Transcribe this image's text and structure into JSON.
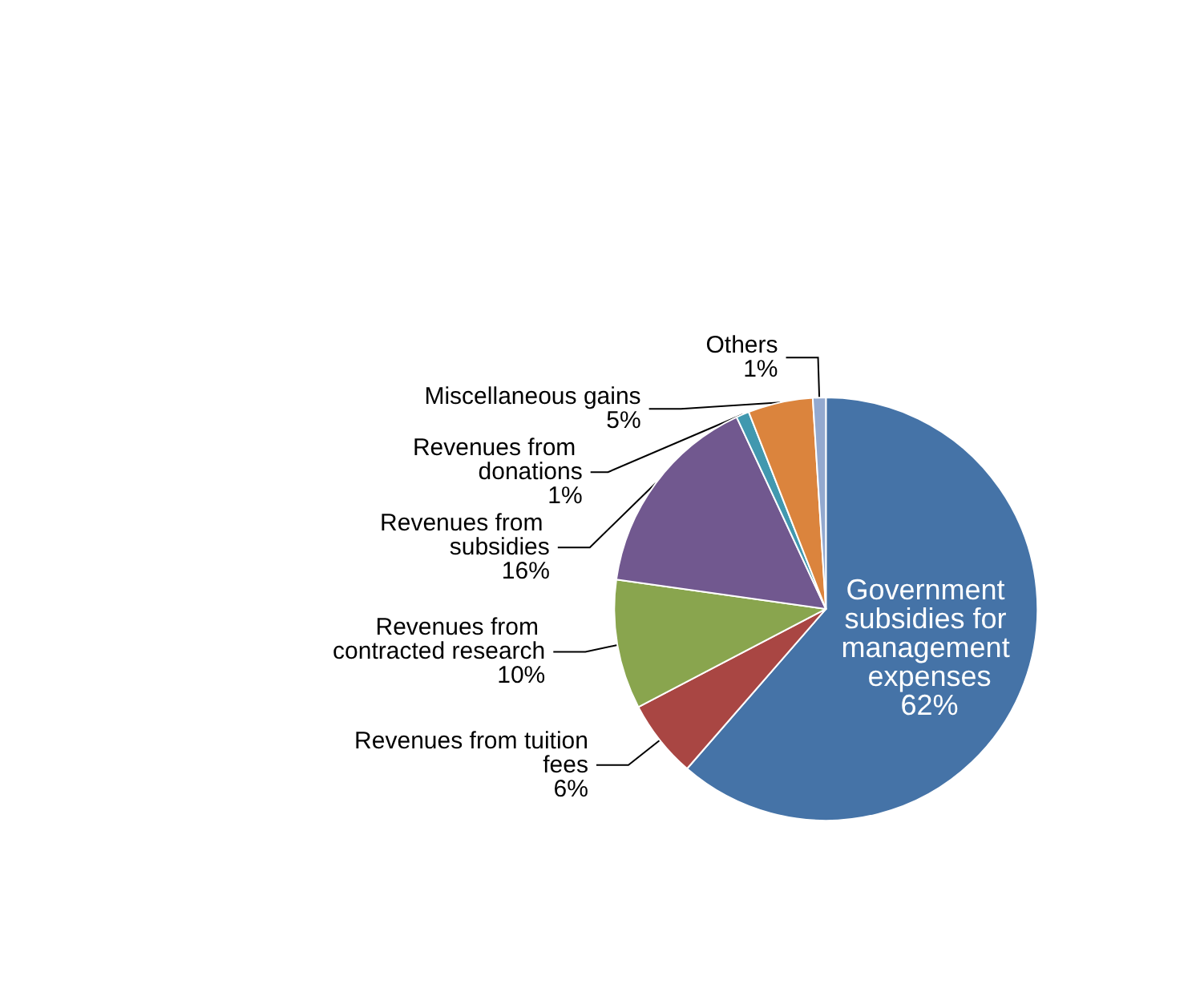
{
  "chart_data": {
    "type": "pie",
    "categories": [
      "Government subsidies for management expenses",
      "Revenues from tuition fees",
      "Revenues from contracted research",
      "Revenues from subsidies",
      "Revenues from donations",
      "Miscellaneous gains",
      "Others"
    ],
    "values": [
      62,
      6,
      10,
      16,
      1,
      5,
      1
    ],
    "colors": [
      "#4573a7",
      "#a94643",
      "#89a54e",
      "#71588f",
      "#4198af",
      "#db843d",
      "#93a9cf"
    ],
    "value_labels": [
      "62%",
      "6%",
      "10%",
      "16%",
      "1%",
      "5%",
      "1%"
    ],
    "legend": false
  }
}
